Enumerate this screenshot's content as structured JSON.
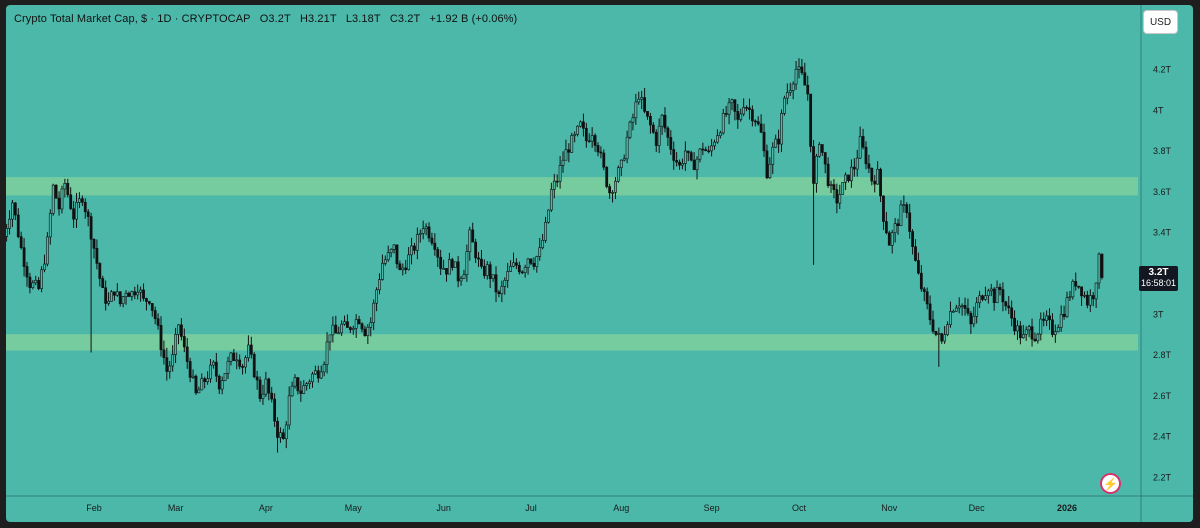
{
  "header": {
    "symbol": "Crypto Total Market Cap, $ · 1D · CRYPTOCAP",
    "open": "O3.2T",
    "high": "H3.21T",
    "low": "L3.18T",
    "close": "C3.2T",
    "change": "+1.92 B (+0.06%)"
  },
  "currency_button": "USD",
  "current_price": {
    "value": "3.2T",
    "countdown": "16:58:01"
  },
  "colors": {
    "background": "#4cb8aa",
    "zone": "#7ecf9c",
    "candle": "#111111",
    "axis_line": "#2f7f75",
    "label_bg": "#131722"
  },
  "logo_icon": "tradingview-flash-icon",
  "chart_data": {
    "type": "candlestick",
    "title": "Crypto Total Market Cap, $ · 1D · CRYPTOCAP",
    "xlabel": "",
    "ylabel": "",
    "ylim": [
      2.1,
      4.38
    ],
    "y_ticks": [
      {
        "value": 4.2,
        "label": "4.2T"
      },
      {
        "value": 4.0,
        "label": "4T"
      },
      {
        "value": 3.8,
        "label": "3.8T"
      },
      {
        "value": 3.6,
        "label": "3.6T"
      },
      {
        "value": 3.4,
        "label": "3.4T"
      },
      {
        "value": 3.2,
        "label": "3.2T"
      },
      {
        "value": 3.0,
        "label": "3T"
      },
      {
        "value": 2.8,
        "label": "2.8T"
      },
      {
        "value": 2.6,
        "label": "2.6T"
      },
      {
        "value": 2.4,
        "label": "2.4T"
      },
      {
        "value": 2.2,
        "label": "2.2T"
      }
    ],
    "x_ticks": [
      {
        "day": 31,
        "label": "Feb"
      },
      {
        "day": 59,
        "label": "Mar"
      },
      {
        "day": 90,
        "label": "Apr"
      },
      {
        "day": 120,
        "label": "May"
      },
      {
        "day": 151,
        "label": "Jun"
      },
      {
        "day": 181,
        "label": "Jul"
      },
      {
        "day": 212,
        "label": "Aug"
      },
      {
        "day": 243,
        "label": "Sep"
      },
      {
        "day": 273,
        "label": "Oct"
      },
      {
        "day": 304,
        "label": "Nov"
      },
      {
        "day": 334,
        "label": "Dec"
      },
      {
        "day": 365,
        "label": "2026"
      }
    ],
    "xlim_days": [
      0,
      391
    ],
    "zones": [
      {
        "name": "resistance",
        "from": 3.58,
        "to": 3.67
      },
      {
        "name": "support",
        "from": 2.82,
        "to": 2.9
      }
    ],
    "close_path": [
      [
        0,
        3.38
      ],
      [
        3,
        3.55
      ],
      [
        6,
        3.32
      ],
      [
        9,
        3.15
      ],
      [
        12,
        3.12
      ],
      [
        15,
        3.35
      ],
      [
        17,
        3.62
      ],
      [
        19,
        3.52
      ],
      [
        21,
        3.64
      ],
      [
        24,
        3.48
      ],
      [
        27,
        3.58
      ],
      [
        30,
        3.4
      ],
      [
        32,
        3.25
      ],
      [
        34,
        3.1
      ],
      [
        36,
        3.05
      ],
      [
        38,
        3.12
      ],
      [
        40,
        3.05
      ],
      [
        42,
        3.12
      ],
      [
        44,
        3.1
      ],
      [
        46,
        3.14
      ],
      [
        48,
        3.06
      ],
      [
        50,
        3.08
      ],
      [
        52,
        2.98
      ],
      [
        54,
        2.85
      ],
      [
        56,
        2.72
      ],
      [
        58,
        2.78
      ],
      [
        60,
        2.95
      ],
      [
        62,
        2.82
      ],
      [
        64,
        2.72
      ],
      [
        66,
        2.6
      ],
      [
        68,
        2.65
      ],
      [
        70,
        2.7
      ],
      [
        72,
        2.74
      ],
      [
        74,
        2.66
      ],
      [
        76,
        2.72
      ],
      [
        78,
        2.78
      ],
      [
        80,
        2.8
      ],
      [
        82,
        2.75
      ],
      [
        84,
        2.82
      ],
      [
        86,
        2.72
      ],
      [
        88,
        2.6
      ],
      [
        90,
        2.66
      ],
      [
        92,
        2.55
      ],
      [
        94,
        2.42
      ],
      [
        96,
        2.38
      ],
      [
        98,
        2.58
      ],
      [
        100,
        2.66
      ],
      [
        102,
        2.62
      ],
      [
        104,
        2.66
      ],
      [
        106,
        2.7
      ],
      [
        108,
        2.72
      ],
      [
        110,
        2.78
      ],
      [
        112,
        2.92
      ],
      [
        114,
        2.9
      ],
      [
        116,
        2.94
      ],
      [
        118,
        2.92
      ],
      [
        120,
        2.96
      ],
      [
        122,
        2.98
      ],
      [
        124,
        2.92
      ],
      [
        126,
        2.96
      ],
      [
        128,
        3.12
      ],
      [
        130,
        3.25
      ],
      [
        132,
        3.28
      ],
      [
        134,
        3.32
      ],
      [
        136,
        3.2
      ],
      [
        138,
        3.25
      ],
      [
        140,
        3.3
      ],
      [
        142,
        3.36
      ],
      [
        144,
        3.44
      ],
      [
        146,
        3.4
      ],
      [
        148,
        3.35
      ],
      [
        150,
        3.24
      ],
      [
        152,
        3.22
      ],
      [
        154,
        3.26
      ],
      [
        156,
        3.18
      ],
      [
        158,
        3.22
      ],
      [
        160,
        3.38
      ],
      [
        162,
        3.3
      ],
      [
        164,
        3.2
      ],
      [
        166,
        3.22
      ],
      [
        168,
        3.16
      ],
      [
        170,
        3.08
      ],
      [
        172,
        3.16
      ],
      [
        174,
        3.22
      ],
      [
        176,
        3.24
      ],
      [
        178,
        3.22
      ],
      [
        180,
        3.28
      ],
      [
        182,
        3.26
      ],
      [
        184,
        3.3
      ],
      [
        186,
        3.42
      ],
      [
        188,
        3.6
      ],
      [
        190,
        3.66
      ],
      [
        192,
        3.76
      ],
      [
        194,
        3.82
      ],
      [
        196,
        3.86
      ],
      [
        198,
        3.92
      ],
      [
        200,
        3.85
      ],
      [
        202,
        3.9
      ],
      [
        204,
        3.82
      ],
      [
        206,
        3.7
      ],
      [
        208,
        3.6
      ],
      [
        210,
        3.66
      ],
      [
        212,
        3.72
      ],
      [
        214,
        3.86
      ],
      [
        216,
        3.96
      ],
      [
        218,
        4.08
      ],
      [
        220,
        3.98
      ],
      [
        222,
        3.92
      ],
      [
        224,
        3.85
      ],
      [
        226,
        3.96
      ],
      [
        228,
        3.86
      ],
      [
        230,
        3.78
      ],
      [
        232,
        3.72
      ],
      [
        234,
        3.8
      ],
      [
        236,
        3.72
      ],
      [
        238,
        3.76
      ],
      [
        240,
        3.82
      ],
      [
        242,
        3.78
      ],
      [
        244,
        3.86
      ],
      [
        246,
        3.92
      ],
      [
        248,
        3.98
      ],
      [
        250,
        4.02
      ],
      [
        252,
        3.94
      ],
      [
        254,
        4.04
      ],
      [
        256,
        4.0
      ],
      [
        258,
        3.96
      ],
      [
        260,
        3.88
      ],
      [
        262,
        3.7
      ],
      [
        264,
        3.8
      ],
      [
        266,
        3.86
      ],
      [
        268,
        4.06
      ],
      [
        270,
        4.12
      ],
      [
        272,
        4.2
      ],
      [
        274,
        4.16
      ],
      [
        276,
        4.08
      ],
      [
        278,
        3.62
      ],
      [
        280,
        3.86
      ],
      [
        282,
        3.72
      ],
      [
        284,
        3.6
      ],
      [
        286,
        3.56
      ],
      [
        288,
        3.62
      ],
      [
        290,
        3.68
      ],
      [
        292,
        3.72
      ],
      [
        294,
        3.84
      ],
      [
        296,
        3.76
      ],
      [
        298,
        3.66
      ],
      [
        300,
        3.68
      ],
      [
        302,
        3.48
      ],
      [
        304,
        3.35
      ],
      [
        306,
        3.42
      ],
      [
        308,
        3.5
      ],
      [
        310,
        3.52
      ],
      [
        312,
        3.32
      ],
      [
        314,
        3.18
      ],
      [
        316,
        3.08
      ],
      [
        318,
        2.98
      ],
      [
        320,
        2.9
      ],
      [
        322,
        2.86
      ],
      [
        324,
        2.98
      ],
      [
        326,
        3.04
      ],
      [
        328,
        3.06
      ],
      [
        330,
        3.02
      ],
      [
        332,
        2.94
      ],
      [
        334,
        3.04
      ],
      [
        336,
        3.1
      ],
      [
        338,
        3.14
      ],
      [
        340,
        3.08
      ],
      [
        342,
        3.12
      ],
      [
        344,
        3.04
      ],
      [
        346,
        2.98
      ],
      [
        348,
        2.92
      ],
      [
        350,
        2.88
      ],
      [
        352,
        2.92
      ],
      [
        354,
        2.9
      ],
      [
        356,
        2.94
      ],
      [
        358,
        2.96
      ],
      [
        360,
        2.92
      ],
      [
        362,
        2.96
      ],
      [
        364,
        3.02
      ],
      [
        366,
        3.1
      ],
      [
        368,
        3.16
      ],
      [
        370,
        3.12
      ],
      [
        372,
        3.06
      ],
      [
        374,
        3.1
      ],
      [
        376,
        3.26
      ],
      [
        377,
        3.2
      ]
    ],
    "spikes": [
      {
        "day": 30,
        "low": 2.81
      },
      {
        "day": 278,
        "low": 3.24
      },
      {
        "day": 321,
        "low": 2.74
      },
      {
        "day": 94,
        "low": 2.32
      }
    ]
  }
}
